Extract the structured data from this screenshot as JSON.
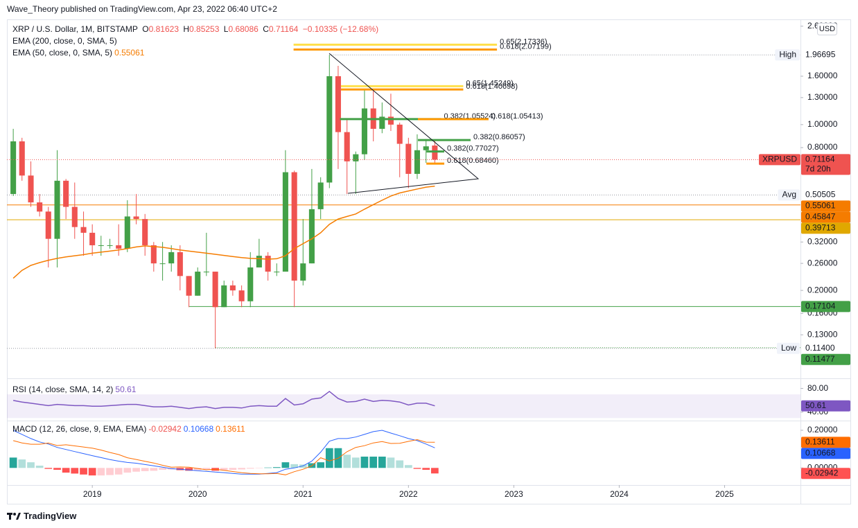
{
  "header": {
    "text": "Wave_Theory published on TradingView.com, Apr 23, 2022 06:40 UTC+2"
  },
  "footer": {
    "brand": "TradingView"
  },
  "chart_data": [
    {
      "type": "candlestick",
      "title": "XRP / U.S. Dollar, 1M, BITSTAMP",
      "ohlc_labels": [
        "O",
        "H",
        "L",
        "C"
      ],
      "change_label": "−0.10335 (−12.68%)",
      "inactive_indicator": "EMA (200, close, 0, SMA, 5)",
      "currency": "USD",
      "log_scale": true,
      "grid": false,
      "x": [
        2018.25,
        2018.333,
        2018.417,
        2018.5,
        2018.583,
        2018.667,
        2018.75,
        2018.833,
        2018.917,
        2019,
        2019.083,
        2019.167,
        2019.25,
        2019.333,
        2019.417,
        2019.5,
        2019.583,
        2019.667,
        2019.75,
        2019.833,
        2019.917,
        2020,
        2020.083,
        2020.167,
        2020.25,
        2020.333,
        2020.417,
        2020.5,
        2020.583,
        2020.667,
        2020.75,
        2020.833,
        2020.917,
        2021,
        2021.083,
        2021.167,
        2021.25,
        2021.333,
        2021.417,
        2021.5,
        2021.583,
        2021.667,
        2021.75,
        2021.833,
        2021.917,
        2022,
        2022.083,
        2022.167,
        2022.25
      ],
      "xlim": [
        2018.19,
        2025.72
      ],
      "xticks": [
        2019,
        2020,
        2021,
        2022,
        2023,
        2024,
        2025
      ],
      "ylim": [
        0.0887,
        2.74
      ],
      "yticks": [
        {
          "value": 2.6,
          "label": "2.60000"
        },
        {
          "value": 1.6,
          "label": "1.60000"
        },
        {
          "value": 1.3,
          "label": "1.30000"
        },
        {
          "value": 1,
          "label": "1.00000"
        },
        {
          "value": 0.8,
          "label": "0.80000"
        },
        {
          "value": 0.32,
          "label": "0.32000"
        },
        {
          "value": 0.26,
          "label": "0.26000"
        },
        {
          "value": 0.2,
          "label": "0.20000"
        },
        {
          "value": 0.16,
          "label": "0.16000"
        },
        {
          "value": 0.13,
          "label": "0.13000"
        }
      ],
      "series": [
        {
          "name": "XRPUSD",
          "up_color": "#43a047",
          "down_color": "#ef5350",
          "countdown": "7d 20h",
          "open": [
            0.51,
            0.85,
            0.61,
            0.47,
            0.43,
            0.33,
            0.58,
            0.45,
            0.37,
            0.35,
            0.31,
            0.31,
            0.31,
            0.3,
            0.41,
            0.4,
            0.31,
            0.26,
            0.26,
            0.29,
            0.23,
            0.19,
            0.24,
            0.24,
            0.17,
            0.21,
            0.2,
            0.18,
            0.25,
            0.28,
            0.24,
            0.24,
            0.63,
            0.22,
            0.26,
            0.44,
            0.57,
            1.6,
            0.93,
            0.7,
            0.75,
            1.17,
            0.96,
            1.08,
            1.0,
            0.83,
            0.62,
            0.78,
            0.81623
          ],
          "high": [
            0.96,
            0.88,
            0.7,
            0.51,
            0.45,
            0.78,
            0.59,
            0.57,
            0.43,
            0.38,
            0.34,
            0.33,
            0.38,
            0.48,
            0.51,
            0.42,
            0.32,
            0.32,
            0.31,
            0.31,
            0.23,
            0.25,
            0.35,
            0.24,
            0.22,
            0.22,
            0.21,
            0.29,
            0.33,
            0.29,
            0.26,
            0.78,
            0.64,
            0.4,
            0.65,
            0.6,
            1.96695,
            1.77,
            1.05,
            0.77,
            1.4,
            1.41,
            1.24,
            1.35,
            1.02,
            0.88,
            0.91,
            0.87,
            0.85253
          ],
          "low": [
            0.5,
            0.58,
            0.45,
            0.41,
            0.25,
            0.25,
            0.4,
            0.33,
            0.28,
            0.28,
            0.28,
            0.3,
            0.28,
            0.29,
            0.38,
            0.28,
            0.24,
            0.22,
            0.24,
            0.2,
            0.17,
            0.19,
            0.23,
            0.114,
            0.17,
            0.19,
            0.17,
            0.17,
            0.25,
            0.22,
            0.23,
            0.24,
            0.17,
            0.21,
            0.26,
            0.4,
            0.54,
            0.65,
            0.51,
            0.51,
            0.71,
            0.85,
            0.92,
            0.94,
            0.6,
            0.54,
            0.59,
            0.69,
            0.68086
          ],
          "close": [
            0.85,
            0.61,
            0.47,
            0.43,
            0.33,
            0.58,
            0.45,
            0.37,
            0.35,
            0.31,
            0.31,
            0.31,
            0.3,
            0.41,
            0.4,
            0.31,
            0.26,
            0.26,
            0.29,
            0.23,
            0.19,
            0.24,
            0.24,
            0.17,
            0.21,
            0.2,
            0.18,
            0.25,
            0.28,
            0.24,
            0.24,
            0.63,
            0.22,
            0.26,
            0.44,
            0.57,
            1.6,
            0.93,
            0.7,
            0.75,
            1.17,
            0.96,
            1.08,
            1.0,
            0.83,
            0.62,
            0.78,
            0.81,
            0.71164
          ]
        },
        {
          "name": "EMA (50, close, 0, SMA, 5)",
          "color": "#f57c00",
          "values": [
            0.225,
            0.243,
            0.255,
            0.262,
            0.268,
            0.273,
            0.277,
            0.28,
            0.283,
            0.287,
            0.29,
            0.293,
            0.296,
            0.3,
            0.305,
            0.308,
            0.306,
            0.304,
            0.3,
            0.296,
            0.293,
            0.29,
            0.287,
            0.284,
            0.281,
            0.278,
            0.275,
            0.273,
            0.272,
            0.271,
            0.272,
            0.28,
            0.3,
            0.315,
            0.33,
            0.35,
            0.38,
            0.4,
            0.41,
            0.42,
            0.44,
            0.46,
            0.48,
            0.5,
            0.515,
            0.525,
            0.535,
            0.545,
            0.55061
          ]
        }
      ],
      "levels": [
        {
          "label": "High",
          "value": 1.96695,
          "x_start": 2021.25,
          "dashed": true
        },
        {
          "label": "Avg",
          "value": 0.50505,
          "dashed": true
        },
        {
          "label": "Low",
          "value": 0.114,
          "value_label": "0.11400",
          "dashed": true
        },
        {
          "value": 0.45847,
          "color": "#f57c00"
        },
        {
          "value": 0.39713,
          "color": "#e0a800"
        },
        {
          "value": 0.17104,
          "color": "#43a047",
          "x_start": 2019.92
        },
        {
          "value": 0.11477,
          "color": "#43a047",
          "x_start": 2020.17,
          "dashed": true
        }
      ],
      "fibs": [
        {
          "label": "0.65(2.17336)",
          "value": 2.17336,
          "color": "#ffe04d",
          "x_range": [
            2020.91,
            2022.84
          ]
        },
        {
          "label": "0.618(2.07199)",
          "value": 2.07199,
          "color": "#ff9800",
          "x_range": [
            2020.91,
            2022.84
          ]
        },
        {
          "label": "0.65(1.45249)",
          "value": 1.45249,
          "color": "#ffe04d",
          "x_range": [
            2021.36,
            2022.52
          ]
        },
        {
          "label": "0.618(1.40698)",
          "value": 1.40698,
          "color": "#ff9800",
          "x_range": [
            2021.36,
            2022.52
          ]
        },
        {
          "label": "0.382(1.05524)",
          "value": 1.05524,
          "color": "#43a047",
          "x_range": [
            2021.35,
            2022.31
          ]
        },
        {
          "label": "0.618(1.05413)",
          "value": 1.05413,
          "color": "#ff9800",
          "x_range": [
            2022.09,
            2022.76
          ]
        },
        {
          "label": "0.382(0.86057)",
          "value": 0.86057,
          "color": "#43a047",
          "x_range": [
            2022.09,
            2022.59
          ]
        },
        {
          "label": "0.382(0.77027)",
          "value": 0.77027,
          "color": "#43a047",
          "x_range": [
            2022.17,
            2022.34
          ]
        },
        {
          "label": "0.618(0.68460)",
          "value": 0.6846,
          "color": "#ff9800",
          "x_range": [
            2022.17,
            2022.34
          ]
        }
      ]
    },
    {
      "type": "line",
      "title": "RSI (14, close, SMA, 14, 2)",
      "color": "#7e57c2",
      "band": [
        30,
        70
      ],
      "ylim": [
        28,
        92.4
      ],
      "yticks": [
        {
          "value": 80,
          "label": "80.00"
        },
        {
          "value": 40,
          "label": "40.00"
        }
      ],
      "values": [
        59.7,
        57,
        55,
        53,
        51,
        53,
        52,
        51,
        51,
        50,
        50,
        51,
        52,
        53,
        53,
        51,
        49,
        49,
        50,
        48,
        46,
        48,
        49,
        46,
        48,
        48,
        47,
        50,
        51,
        50,
        50,
        63,
        52,
        54,
        62,
        64,
        75,
        63,
        57,
        58,
        62,
        58,
        60,
        59,
        57,
        52,
        55,
        55,
        50.61
      ]
    },
    {
      "type": "macd",
      "title": "MACD (12, 26, close, 9, EMA, EMA)",
      "ylim": [
        -0.0836,
        0.233
      ],
      "yticks": [
        {
          "value": 0.2,
          "label": "0.20000"
        },
        {
          "value": 0,
          "label": "0.00000"
        }
      ],
      "histogram": {
        "colors": [
          "#26a69a",
          "#b2dfdb",
          "#ffcdd2",
          "#ff5252"
        ],
        "values": [
          0.055,
          0.045,
          0.03,
          0.012,
          -0.005,
          -0.01,
          -0.025,
          -0.03,
          -0.035,
          -0.04,
          -0.04,
          -0.038,
          -0.035,
          -0.025,
          -0.02,
          -0.017,
          -0.015,
          -0.01,
          -0.008,
          -0.012,
          -0.015,
          -0.012,
          -0.008,
          -0.015,
          -0.012,
          -0.01,
          -0.008,
          -0.004,
          -0.002,
          0.002,
          0.004,
          0.03,
          0.02,
          0.018,
          0.025,
          0.03,
          0.105,
          0.105,
          0.07,
          0.055,
          0.06,
          0.06,
          0.06,
          0.055,
          0.04,
          0.015,
          -0.005,
          -0.01,
          -0.02942
        ]
      },
      "macd": {
        "color": "#2962ff",
        "values": [
          0.2,
          0.178,
          0.156,
          0.138,
          0.127,
          0.109,
          0.098,
          0.087,
          0.076,
          0.065,
          0.055,
          0.044,
          0.036,
          0.029,
          0.025,
          0.018,
          0.011,
          0.004,
          -0.004,
          -0.007,
          -0.011,
          -0.015,
          -0.018,
          -0.022,
          -0.025,
          -0.029,
          -0.033,
          -0.033,
          -0.033,
          -0.029,
          -0.025,
          -0.007,
          0,
          0.011,
          0.036,
          0.084,
          0.142,
          0.156,
          0.156,
          0.164,
          0.178,
          0.193,
          0.2,
          0.185,
          0.171,
          0.156,
          0.145,
          0.127,
          0.10668
        ]
      },
      "signal": {
        "color": "#ff6d00",
        "values": [
          0.145,
          0.133,
          0.126,
          0.126,
          0.132,
          0.119,
          0.123,
          0.117,
          0.111,
          0.105,
          0.095,
          0.082,
          0.071,
          0.054,
          0.045,
          0.035,
          0.026,
          0.014,
          0.004,
          0.005,
          0.004,
          -0.003,
          -0.01,
          -0.007,
          -0.013,
          -0.019,
          -0.025,
          -0.029,
          -0.031,
          -0.031,
          -0.029,
          -0.037,
          -0.02,
          -0.007,
          0.011,
          0.054,
          0.037,
          0.051,
          0.086,
          0.109,
          0.118,
          0.133,
          0.14,
          0.13,
          0.131,
          0.141,
          0.15,
          0.137,
          0.13611
        ]
      }
    }
  ]
}
